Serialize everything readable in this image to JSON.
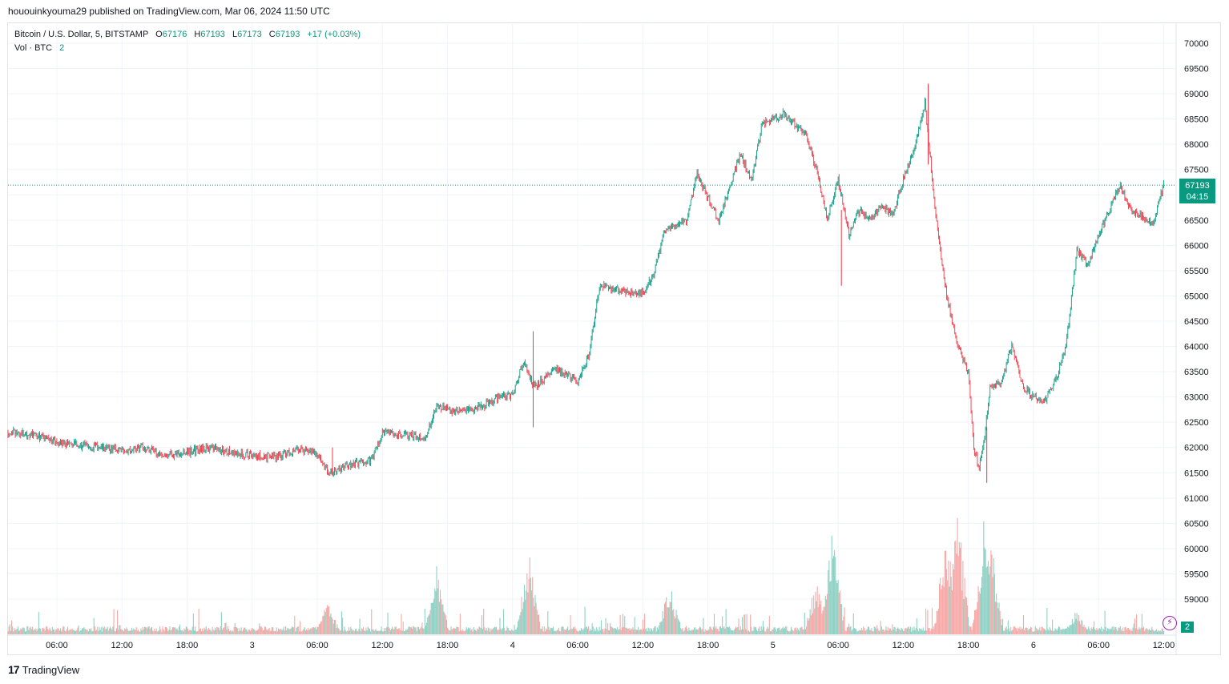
{
  "publish_line": "hououinkyouma29 published on TradingView.com, Mar 06, 2024 11:50 UTC",
  "legend": {
    "symbol": "Bitcoin / U.S. Dollar, 5, BITSTAMP",
    "o_label": "O",
    "o_value": "67176",
    "h_label": "H",
    "h_value": "67193",
    "l_label": "L",
    "l_value": "67173",
    "c_label": "C",
    "c_value": "67193",
    "change": "+17 (+0.03%)",
    "vol_label": "Vol · BTC",
    "vol_value": "2"
  },
  "price_badge": {
    "price": "67193",
    "countdown": "04:15"
  },
  "vol_badge": "2",
  "alert_icon": "lightning-icon",
  "footer": {
    "logo_mark": "17",
    "logo_text": "TradingView"
  },
  "colors": {
    "up": "#089981",
    "down": "#f23645",
    "up_vol": "#8fd1c4",
    "down_vol": "#f7a9a7"
  },
  "chart_data": {
    "type": "candlestick",
    "y_ticks": [
      59000,
      59500,
      60000,
      60500,
      61000,
      61500,
      62000,
      62500,
      63000,
      63500,
      64000,
      64500,
      65000,
      65500,
      66000,
      66500,
      67000,
      67500,
      68000,
      68500,
      69000,
      69500,
      70000
    ],
    "y_tick_labels": [
      "59000",
      "59500",
      "60000",
      "60500",
      "61000",
      "61500",
      "62000",
      "62500",
      "63000",
      "63500",
      "64000",
      "64500",
      "65000",
      "65500",
      "66000",
      "66500",
      "67000",
      "67500",
      "68000",
      "68500",
      "69000",
      "69500",
      "70000"
    ],
    "x_tick_labels": [
      "06:00",
      "12:00",
      "18:00",
      "3",
      "06:00",
      "12:00",
      "18:00",
      "4",
      "06:00",
      "12:00",
      "18:00",
      "5",
      "06:00",
      "12:00",
      "18:00",
      "6",
      "06:00",
      "12:00"
    ],
    "x_tick_hours": [
      6,
      12,
      18,
      24,
      30,
      36,
      42,
      48,
      54,
      60,
      66,
      72,
      78,
      84,
      90,
      96,
      102,
      108
    ],
    "last_price": 67193,
    "ylim": [
      58400,
      70200
    ],
    "xlim_hours": [
      1.5,
      109
    ],
    "price_path": [
      [
        1.5,
        62300
      ],
      [
        4,
        62250
      ],
      [
        6,
        62100
      ],
      [
        8,
        62050
      ],
      [
        10,
        62000
      ],
      [
        12,
        61950
      ],
      [
        14,
        62000
      ],
      [
        16,
        61850
      ],
      [
        18,
        61900
      ],
      [
        20,
        62000
      ],
      [
        22,
        61900
      ],
      [
        24,
        61850
      ],
      [
        26,
        61800
      ],
      [
        28,
        61950
      ],
      [
        30,
        61900
      ],
      [
        31,
        61500
      ],
      [
        33,
        61650
      ],
      [
        35,
        61750
      ],
      [
        36,
        62300
      ],
      [
        38,
        62250
      ],
      [
        40,
        62200
      ],
      [
        41,
        62800
      ],
      [
        43,
        62700
      ],
      [
        45,
        62800
      ],
      [
        47,
        63000
      ],
      [
        48,
        63050
      ],
      [
        49,
        63700
      ],
      [
        50,
        63200
      ],
      [
        52,
        63550
      ],
      [
        54,
        63300
      ],
      [
        55,
        63800
      ],
      [
        56,
        65200
      ],
      [
        58,
        65100
      ],
      [
        60,
        65050
      ],
      [
        61,
        65400
      ],
      [
        62,
        66300
      ],
      [
        64,
        66500
      ],
      [
        65,
        67400
      ],
      [
        67,
        66500
      ],
      [
        69,
        67800
      ],
      [
        70,
        67300
      ],
      [
        71,
        68400
      ],
      [
        73,
        68600
      ],
      [
        75,
        68200
      ],
      [
        76,
        67500
      ],
      [
        77,
        66500
      ],
      [
        78,
        67300
      ],
      [
        79,
        66200
      ],
      [
        80,
        66700
      ],
      [
        81,
        66500
      ],
      [
        82,
        66800
      ],
      [
        83,
        66600
      ],
      [
        84,
        67300
      ],
      [
        85,
        67900
      ],
      [
        86,
        68800
      ],
      [
        87,
        66600
      ],
      [
        88,
        65000
      ],
      [
        89,
        64000
      ],
      [
        90,
        63500
      ],
      [
        90.5,
        62000
      ],
      [
        91,
        61600
      ],
      [
        91.5,
        62200
      ],
      [
        92,
        63200
      ],
      [
        93,
        63300
      ],
      [
        94,
        64000
      ],
      [
        95,
        63200
      ],
      [
        96,
        63000
      ],
      [
        97,
        62900
      ],
      [
        98,
        63300
      ],
      [
        99,
        64000
      ],
      [
        100,
        65900
      ],
      [
        101,
        65600
      ],
      [
        102,
        66200
      ],
      [
        103,
        66700
      ],
      [
        104,
        67200
      ],
      [
        105,
        66700
      ],
      [
        106,
        66600
      ],
      [
        107,
        66400
      ],
      [
        108,
        67193
      ]
    ],
    "wicks": [
      {
        "x": 78.3,
        "low": 65200,
        "high": 66700
      },
      {
        "x": 86.3,
        "low": 67600,
        "high": 69200
      },
      {
        "x": 91.7,
        "low": 61300,
        "high": 62400
      },
      {
        "x": 49.9,
        "low": 62400,
        "high": 64300
      },
      {
        "x": 31.4,
        "low": 61450,
        "high": 62000
      }
    ],
    "volume_spikes": [
      {
        "x": 31.0,
        "v": 0.25
      },
      {
        "x": 41.0,
        "v": 0.55
      },
      {
        "x": 49.5,
        "v": 0.62
      },
      {
        "x": 62.5,
        "v": 0.4
      },
      {
        "x": 76.0,
        "v": 0.42
      },
      {
        "x": 77.5,
        "v": 0.8
      },
      {
        "x": 88.0,
        "v": 0.85
      },
      {
        "x": 89.0,
        "v": 0.95
      },
      {
        "x": 91.5,
        "v": 0.9
      },
      {
        "x": 92.0,
        "v": 0.78
      },
      {
        "x": 100.0,
        "v": 0.2
      }
    ]
  }
}
